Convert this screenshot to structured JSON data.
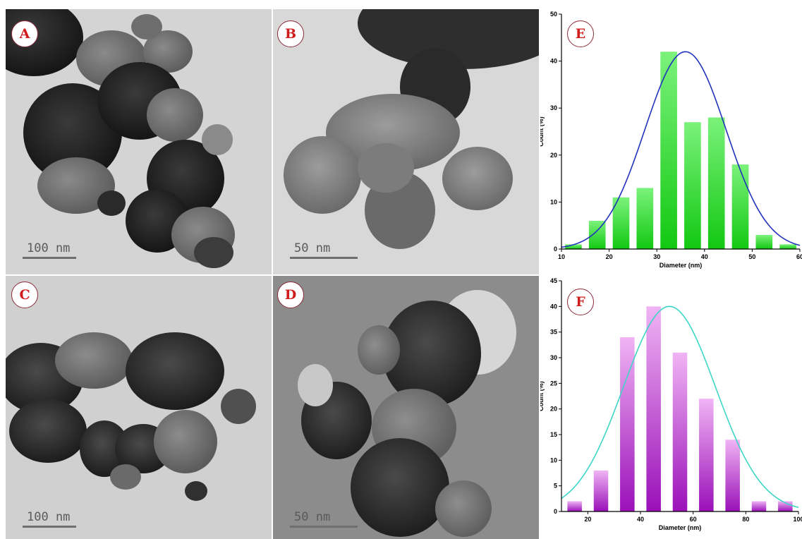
{
  "panels": {
    "A": {
      "label": "A",
      "scale": "100 nm"
    },
    "B": {
      "label": "B",
      "scale": "50 nm"
    },
    "C": {
      "label": "C",
      "scale": "100 nm"
    },
    "D": {
      "label": "D",
      "scale": "50 nm"
    }
  },
  "chart_data": [
    {
      "panel_label": "E",
      "type": "bar",
      "x": [
        12.5,
        17.5,
        22.5,
        27.5,
        32.5,
        37.5,
        42.5,
        47.5,
        52.5,
        57.5
      ],
      "values": [
        1,
        6,
        11,
        13,
        42,
        27,
        28,
        18,
        3,
        1
      ],
      "bin_width": 3.5,
      "xlabel": "Diameter (nm)",
      "ylabel": "Count (%)",
      "xlim": [
        10,
        60
      ],
      "ylim": [
        0,
        50
      ],
      "xticks": [
        10,
        20,
        30,
        40,
        50,
        60
      ],
      "yticks": [
        0,
        10,
        20,
        30,
        40,
        50
      ],
      "fit": {
        "type": "gaussian",
        "mean": 36,
        "sigma": 8.5,
        "peak": 42
      },
      "colors": {
        "bar_top": "#7bf27b",
        "bar_bottom": "#12c812",
        "fit": "#2233bb"
      },
      "grid": false
    },
    {
      "panel_label": "F",
      "type": "bar",
      "x": [
        15,
        25,
        35,
        45,
        55,
        65,
        75,
        85,
        95
      ],
      "values": [
        2,
        8,
        34,
        40,
        31,
        22,
        14,
        2,
        2
      ],
      "bin_width": 5.5,
      "xlabel": "Diameter (nm)",
      "ylabel": "Count (%)",
      "xlim": [
        10,
        100
      ],
      "ylim": [
        0,
        45
      ],
      "xticks": [
        20,
        40,
        60,
        80,
        100
      ],
      "yticks": [
        0,
        5,
        10,
        15,
        20,
        25,
        30,
        35,
        40,
        45
      ],
      "fit": {
        "type": "gaussian",
        "mean": 51,
        "sigma": 17.5,
        "peak": 40
      },
      "colors": {
        "bar_top": "#f0b4f4",
        "bar_bottom": "#9a10b8",
        "fit": "#3ed6c6"
      },
      "grid": false
    }
  ]
}
